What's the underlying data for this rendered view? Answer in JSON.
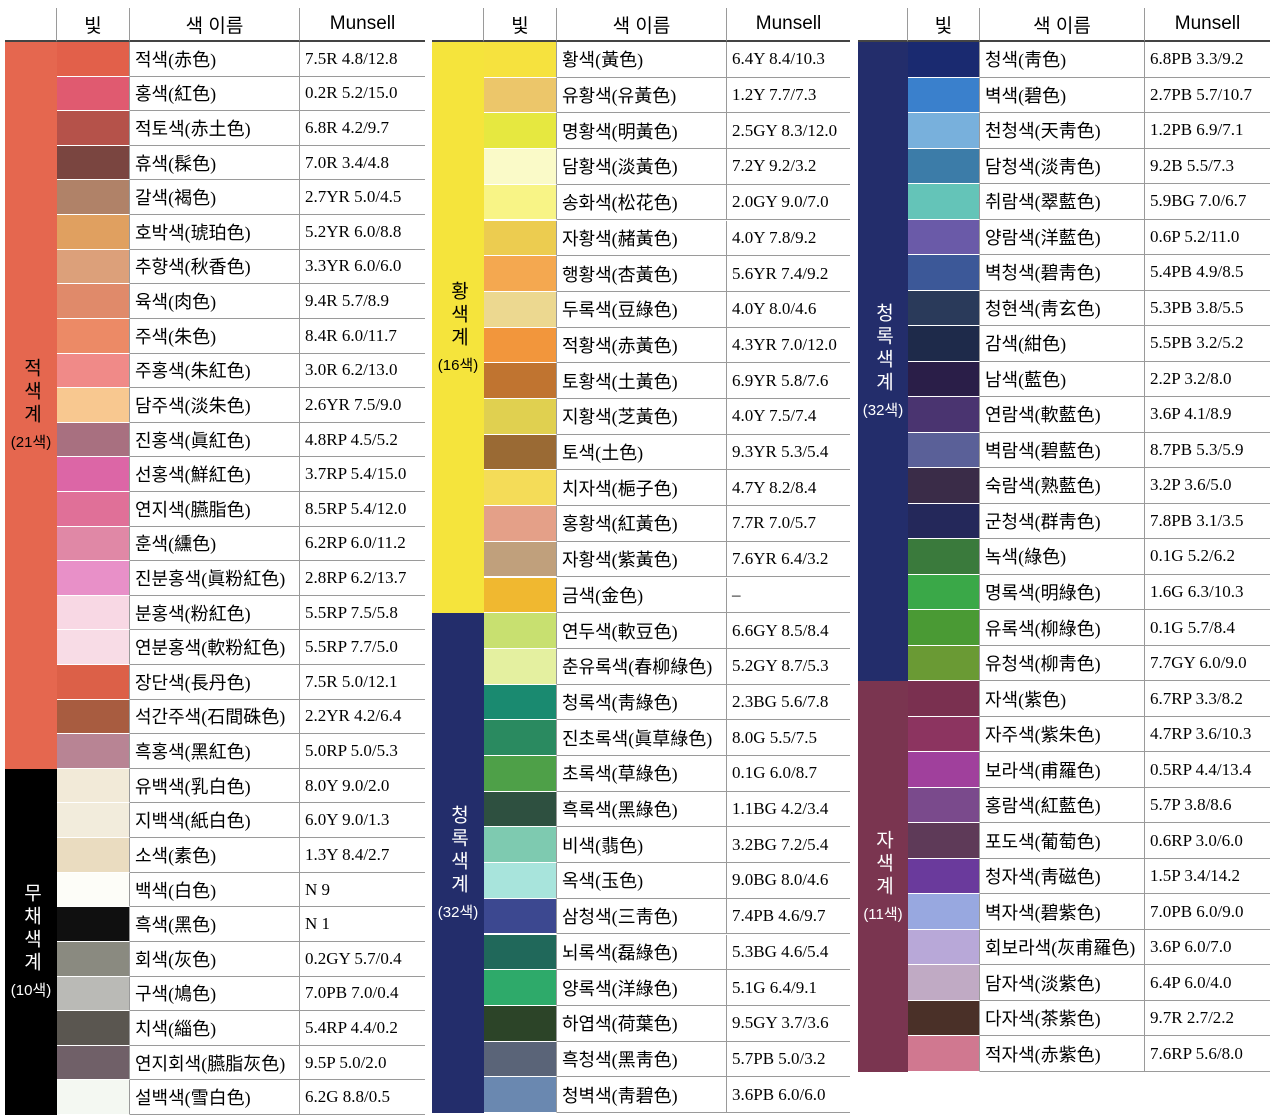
{
  "panels": [
    {
      "header": [
        "빛",
        "색 이름",
        "Munsell"
      ],
      "groups": [
        {
          "label": "적색계",
          "count": "(21색)",
          "color": "#e5674f",
          "text_color": "#000000",
          "rows": [
            {
              "color": "#e2604a",
              "name": "적색(赤色)",
              "munsell": "7.5R 4.8/12.8"
            },
            {
              "color": "#e05a70",
              "name": "홍색(紅色)",
              "munsell": "0.2R 5.2/15.0"
            },
            {
              "color": "#b5524a",
              "name": "적토색(赤土色)",
              "munsell": "6.8R 4.2/9.7"
            },
            {
              "color": "#7a4540",
              "name": "휴색(髹色)",
              "munsell": "7.0R 3.4/4.8"
            },
            {
              "color": "#b08268",
              "name": "갈색(褐色)",
              "munsell": "2.7YR 5.0/4.5"
            },
            {
              "color": "#e0a060",
              "name": "호박색(琥珀色)",
              "munsell": "5.2YR 6.0/8.8"
            },
            {
              "color": "#dca07a",
              "name": "추향색(秋香色)",
              "munsell": "3.3YR 6.0/6.0"
            },
            {
              "color": "#e08a6a",
              "name": "육색(肉色)",
              "munsell": "9.4R 5.7/8.9"
            },
            {
              "color": "#ec8a66",
              "name": "주색(朱色)",
              "munsell": "8.4R 6.0/11.7"
            },
            {
              "color": "#f08a88",
              "name": "주홍색(朱紅色)",
              "munsell": "3.0R 6.2/13.0"
            },
            {
              "color": "#f8c890",
              "name": "담주색(淡朱色)",
              "munsell": "2.6YR 7.5/9.0"
            },
            {
              "color": "#a87080",
              "name": "진홍색(眞紅色)",
              "munsell": "4.8RP 4.5/5.2"
            },
            {
              "color": "#dc66a6",
              "name": "선홍색(鮮紅色)",
              "munsell": "3.7RP 5.4/15.0"
            },
            {
              "color": "#e07098",
              "name": "연지색(臙脂色)",
              "munsell": "8.5RP 5.4/12.0"
            },
            {
              "color": "#e088a6",
              "name": "훈색(纁色)",
              "munsell": "6.2RP 6.0/11.2"
            },
            {
              "color": "#e890c8",
              "name": "진분홍색(眞粉紅色)",
              "munsell": "2.8RP 6.2/13.7"
            },
            {
              "color": "#f8d8e4",
              "name": "분홍색(粉紅色)",
              "munsell": "5.5RP 7.5/5.8"
            },
            {
              "color": "#f8dce6",
              "name": "연분홍색(軟粉紅色)",
              "munsell": "5.5RP 7.7/5.0"
            },
            {
              "color": "#dc6048",
              "name": "장단색(長丹色)",
              "munsell": "7.5R 5.0/12.1"
            },
            {
              "color": "#a85c40",
              "name": "석간주색(石間硃色)",
              "munsell": "2.2YR 4.2/6.4"
            },
            {
              "color": "#b88494",
              "name": "흑홍색(黑紅色)",
              "munsell": "5.0RP 5.0/5.3"
            }
          ]
        },
        {
          "label": "무채색계",
          "count": "(10색)",
          "color": "#000000",
          "text_color": "#ffffff",
          "rows": [
            {
              "color": "#f2ead8",
              "name": "유백색(乳白色)",
              "munsell": "8.0Y 9.0/2.0"
            },
            {
              "color": "#f2ecdc",
              "name": "지백색(紙白色)",
              "munsell": "6.0Y 9.0/1.3"
            },
            {
              "color": "#eadcc0",
              "name": "소색(素色)",
              "munsell": "1.3Y 8.4/2.7"
            },
            {
              "color": "#fdfdf8",
              "name": "백색(白色)",
              "munsell": "N 9"
            },
            {
              "color": "#101010",
              "name": "흑색(黑色)",
              "munsell": "N 1"
            },
            {
              "color": "#8a8a80",
              "name": "회색(灰色)",
              "munsell": "0.2GY 5.7/0.4"
            },
            {
              "color": "#babab6",
              "name": "구색(鳩色)",
              "munsell": "7.0PB 7.0/0.4"
            },
            {
              "color": "#5a5650",
              "name": "치색(緇色)",
              "munsell": "5.4RP 4.4/0.2"
            },
            {
              "color": "#706068",
              "name": "연지회색(臙脂灰色)",
              "munsell": "9.5P 5.0/2.0"
            },
            {
              "color": "#f4f8f2",
              "name": "설백색(雪白色)",
              "munsell": "6.2G 8.8/0.5"
            }
          ]
        }
      ]
    },
    {
      "header": [
        "빛",
        "색 이름",
        "Munsell"
      ],
      "groups": [
        {
          "label": "황색계",
          "count": "(16색)",
          "color": "#f5e43c",
          "text_color": "#000000",
          "rows": [
            {
              "color": "#f6e23e",
              "name": "황색(黃色)",
              "munsell": "6.4Y 8.4/10.3"
            },
            {
              "color": "#ecc66a",
              "name": "유황색(유黃色)",
              "munsell": "1.2Y 7.7/7.3"
            },
            {
              "color": "#e6e840",
              "name": "명황색(明黃色)",
              "munsell": "2.5GY 8.3/12.0"
            },
            {
              "color": "#fafac8",
              "name": "담황색(淡黃色)",
              "munsell": "7.2Y 9.2/3.2"
            },
            {
              "color": "#f8f486",
              "name": "송화색(松花色)",
              "munsell": "2.0GY 9.0/7.0"
            },
            {
              "color": "#eccc50",
              "name": "자황색(赭黃色)",
              "munsell": "4.0Y 7.8/9.2"
            },
            {
              "color": "#f4a850",
              "name": "행황색(杏黃色)",
              "munsell": "5.6YR 7.4/9.2"
            },
            {
              "color": "#ecd890",
              "name": "두록색(豆綠色)",
              "munsell": "4.0Y 8.0/4.6"
            },
            {
              "color": "#f2963c",
              "name": "적황색(赤黃色)",
              "munsell": "4.3YR 7.0/12.0"
            },
            {
              "color": "#c07430",
              "name": "토황색(土黃色)",
              "munsell": "6.9YR 5.8/7.6"
            },
            {
              "color": "#e0d050",
              "name": "지황색(芝黃色)",
              "munsell": "4.0Y 7.5/7.4"
            },
            {
              "color": "#9a6a34",
              "name": "토색(土色)",
              "munsell": "9.3YR 5.3/5.4"
            },
            {
              "color": "#f4dc58",
              "name": "치자색(梔子色)",
              "munsell": "4.7Y 8.2/8.4"
            },
            {
              "color": "#e4a088",
              "name": "홍황색(紅黃色)",
              "munsell": "7.7R 7.0/5.7"
            },
            {
              "color": "#c0a07c",
              "name": "자황색(紫黃色)",
              "munsell": "7.6YR 6.4/3.2"
            },
            {
              "color": "#f0b830",
              "name": "금색(金色)",
              "munsell": "–"
            }
          ]
        },
        {
          "label": "청록색계",
          "count": "(32색)",
          "color": "#232d6b",
          "text_color": "#ffffff",
          "rows": [
            {
              "color": "#c8e070",
              "name": "연두색(軟豆色)",
              "munsell": "6.6GY 8.5/8.4"
            },
            {
              "color": "#e4f0a0",
              "name": "춘유록색(春柳綠色)",
              "munsell": "5.2GY 8.7/5.3"
            },
            {
              "color": "#1a8a70",
              "name": "청록색(靑綠色)",
              "munsell": "2.3BG 5.6/7.8"
            },
            {
              "color": "#2a8a60",
              "name": "진초록색(眞草綠色)",
              "munsell": "8.0G 5.5/7.5"
            },
            {
              "color": "#4ea048",
              "name": "초록색(草綠色)",
              "munsell": "0.1G 6.0/8.7"
            },
            {
              "color": "#2e5040",
              "name": "흑록색(黑綠色)",
              "munsell": "1.1BG 4.2/3.4"
            },
            {
              "color": "#7ecab0",
              "name": "비색(翡色)",
              "munsell": "3.2BG 7.2/5.4"
            },
            {
              "color": "#a8e4dc",
              "name": "옥색(玉色)",
              "munsell": "9.0BG 8.0/4.6"
            },
            {
              "color": "#3c4890",
              "name": "삼청색(三靑色)",
              "munsell": "7.4PB 4.6/9.7"
            },
            {
              "color": "#20685a",
              "name": "뇌록색(磊綠色)",
              "munsell": "5.3BG 4.6/5.4"
            },
            {
              "color": "#2eaa6a",
              "name": "양록색(洋綠色)",
              "munsell": "5.1G 6.4/9.1"
            },
            {
              "color": "#2c4428",
              "name": "하엽색(荷葉色)",
              "munsell": "9.5GY 3.7/3.6"
            },
            {
              "color": "#5a6478",
              "name": "흑청색(黑靑色)",
              "munsell": "5.7PB 5.0/3.2"
            },
            {
              "color": "#6a88b0",
              "name": "청벽색(靑碧色)",
              "munsell": "3.6PB 6.0/6.0"
            }
          ]
        }
      ]
    },
    {
      "header": [
        "빛",
        "색 이름",
        "Munsell"
      ],
      "groups": [
        {
          "label": "청록색계",
          "count": "(32색)",
          "color": "#232d6b",
          "text_color": "#ffffff",
          "rows": [
            {
              "color": "#1a2a70",
              "name": "청색(靑色)",
              "munsell": "6.8PB 3.3/9.2"
            },
            {
              "color": "#3a80cc",
              "name": "벽색(碧色)",
              "munsell": "2.7PB 5.7/10.7"
            },
            {
              "color": "#78b0dc",
              "name": "천청색(天靑色)",
              "munsell": "1.2PB 6.9/7.1"
            },
            {
              "color": "#3c7ca8",
              "name": "담청색(淡靑色)",
              "munsell": "9.2B 5.5/7.3"
            },
            {
              "color": "#64c4b8",
              "name": "취람색(翠藍色)",
              "munsell": "5.9BG 7.0/6.7"
            },
            {
              "color": "#6a5aa8",
              "name": "양람색(洋藍色)",
              "munsell": "0.6P 5.2/11.0"
            },
            {
              "color": "#3c5898",
              "name": "벽청색(碧靑色)",
              "munsell": "5.4PB 4.9/8.5"
            },
            {
              "color": "#2a3a5a",
              "name": "청현색(靑玄色)",
              "munsell": "5.3PB 3.8/5.5"
            },
            {
              "color": "#1e2a4a",
              "name": "감색(紺色)",
              "munsell": "5.5PB 3.2/5.2"
            },
            {
              "color": "#2a1e48",
              "name": "남색(藍色)",
              "munsell": "2.2P 3.2/8.0"
            },
            {
              "color": "#4a3470",
              "name": "연람색(軟藍色)",
              "munsell": "3.6P 4.1/8.9"
            },
            {
              "color": "#5a6098",
              "name": "벽람색(碧藍色)",
              "munsell": "8.7PB 5.3/5.9"
            },
            {
              "color": "#3a2c48",
              "name": "숙람색(熟藍色)",
              "munsell": "3.2P 3.6/5.0"
            },
            {
              "color": "#24285a",
              "name": "군청색(群靑色)",
              "munsell": "7.8PB 3.1/3.5"
            },
            {
              "color": "#3a7a3c",
              "name": "녹색(綠色)",
              "munsell": "0.1G 5.2/6.2"
            },
            {
              "color": "#3aa848",
              "name": "명록색(明綠色)",
              "munsell": "1.6G 6.3/10.3"
            },
            {
              "color": "#4a9a34",
              "name": "유록색(柳綠色)",
              "munsell": "0.1G 5.7/8.4"
            },
            {
              "color": "#6a9a34",
              "name": "유청색(柳靑色)",
              "munsell": "7.7GY 6.0/9.0"
            }
          ]
        },
        {
          "label": "자색계",
          "count": "(11색)",
          "color": "#7a3550",
          "text_color": "#ffffff",
          "rows": [
            {
              "color": "#7a3050",
              "name": "자색(紫色)",
              "munsell": "6.7RP 3.3/8.2"
            },
            {
              "color": "#8c3460",
              "name": "자주색(紫朱色)",
              "munsell": "4.7RP 3.6/10.3"
            },
            {
              "color": "#a0409c",
              "name": "보라색(甫羅色)",
              "munsell": "0.5RP 4.4/13.4"
            },
            {
              "color": "#7a4a8c",
              "name": "홍람색(紅藍色)",
              "munsell": "5.7P 3.8/8.6"
            },
            {
              "color": "#5e3a58",
              "name": "포도색(葡萄色)",
              "munsell": "0.6RP 3.0/6.0"
            },
            {
              "color": "#6a3a9c",
              "name": "청자색(靑磁色)",
              "munsell": "1.5P 3.4/14.2"
            },
            {
              "color": "#98a8e0",
              "name": "벽자색(碧紫色)",
              "munsell": "7.0PB 6.0/9.0"
            },
            {
              "color": "#b8a8d8",
              "name": "회보라색(灰甫羅色)",
              "munsell": "3.6P 6.0/7.0"
            },
            {
              "color": "#c0aac4",
              "name": "담자색(淡紫色)",
              "munsell": "6.4P 6.0/4.0"
            },
            {
              "color": "#4a3028",
              "name": "다자색(茶紫色)",
              "munsell": "9.7R 2.7/2.2"
            },
            {
              "color": "#d07890",
              "name": "적자색(赤紫色)",
              "munsell": "7.6RP 5.6/8.0"
            }
          ]
        }
      ]
    }
  ]
}
